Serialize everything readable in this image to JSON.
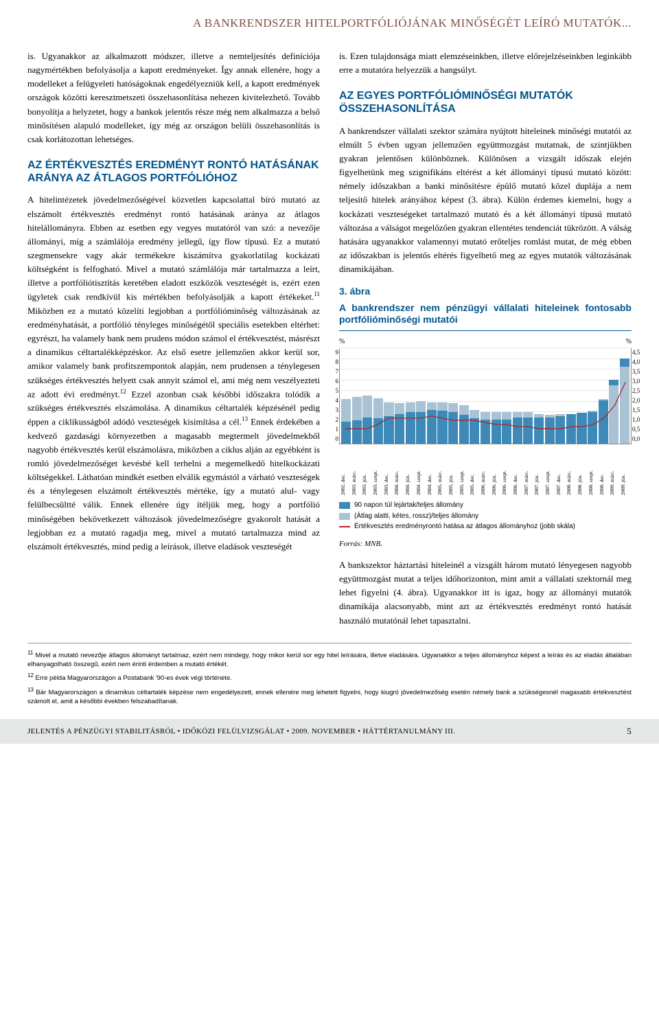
{
  "header": {
    "title": "A BANKRENDSZER HITELPORTFÓLIÓJÁNAK MINŐSÉGÉT LEÍRÓ MUTATÓK..."
  },
  "left": {
    "para1": "is. Ugyanakkor az alkalmazott módszer, illetve a nemteljesítés definíciója nagymértékben befolyásolja a kapott eredményeket. Így annak ellenére, hogy a modelleket a felügyeleti hatóságoknak engedélyezniük kell, a kapott eredmények országok közötti keresztmetszeti összehasonlítása nehezen kivitelezhető. Tovább bonyolítja a helyzetet, hogy a bankok jelentős része még nem alkalmazza a belső minősítésen alapuló modelleket, így még az országon belüli összehasonlítás is csak korlátozottan lehetséges.",
    "heading1": "AZ ÉRTÉKVESZTÉS EREDMÉNYT RONTÓ HATÁSÁNAK ARÁNYA AZ ÁTLAGOS PORTFÓLIÓHOZ",
    "para2": "A hitelintézetek jövedelmezőségével közvetlen kapcsolattal bíró mutató az elszámolt értékvesztés eredményt rontó hatásának aránya az átlagos hitelállományra. Ebben az esetben egy vegyes mutatóról van szó: a nevezője állományi, míg a számlálója eredmény jellegű, így flow típusú. Ez a mutató szegmensekre vagy akár termékekre kiszámítva gyakorlatilag kockázati költségként is felfogható. Mivel a mutató számlálója már tartalmazza a leírt, illetve a portfóliótisztítás keretében eladott eszközök veszteségét is, ezért ezen ügyletek csak rendkívül kis mértékben befolyásolják a kapott értékeket.",
    "fn11": "11",
    "para2b": " Miközben ez a mutató közelíti legjobban a portfólióminőség változásának az eredményhatását, a portfólió tényleges minőségétől speciális esetekben eltérhet: egyrészt, ha valamely bank nem prudens módon számol el értékvesztést, másrészt a dinamikus céltartalékképzéskor. Az első esetre jellemzően akkor kerül sor, amikor valamely bank profitszempontok alapján, nem prudensen a ténylegesen szükséges értékvesztés helyett csak annyit számol el, ami még nem veszélyezteti az adott évi eredményt.",
    "fn12": "12",
    "para2c": " Ezzel azonban csak későbbi időszakra tolódik a szükséges értékvesztés elszámolása. A dinamikus céltartalék képzésénél pedig éppen a ciklikusságból adódó veszteségek kisimítása a cél.",
    "fn13": "13",
    "para2d": " Ennek érdekében a kedvező gazdasági környezetben a magasabb megtermelt jövedelmekből nagyobb értékvesztés kerül elszámolásra, miközben a ciklus alján az egyébként is romló jövedelmezőséget kevésbé kell terhelni a megemelkedő hitelkockázati költségekkel. Láthatóan mindkét esetben elválik egymástól a várható veszteségek és a ténylegesen elszámolt értékvesztés mértéke, így a mutató alul- vagy felülbecsültté válik. Ennek ellenére úgy ítéljük meg, hogy a portfólió minőségében bekövetkezett változások jövedelmezőségre gyakorolt hatását a legjobban ez a mutató ragadja meg, mivel a mutató tartalmazza mind az elszámolt értékvesztés, mind pedig a leírások, illetve eladások veszteségét"
  },
  "right": {
    "para1": "is. Ezen tulajdonsága miatt elemzéseinkben, illetve előrejelzéseinkben leginkább erre a mutatóra helyezzük a hangsúlyt.",
    "heading1": "AZ EGYES PORTFÓLIÓMINŐSÉGI MUTATÓK ÖSSZEHASONLÍTÁSA",
    "para2": "A bankrendszer vállalati szektor számára nyújtott hiteleinek minőségi mutatói az elmúlt 5 évben ugyan jellemzően együttmozgást mutatnak, de szintjükben gyakran jelentősen különböznek. Különösen a vizsgált időszak elején figyelhetünk meg szignifikáns eltérést a két állományi típusú mutató között: némely időszakban a banki minősítésre épülő mutató közel duplája a nem teljesítő hitelek arányához képest (3. ábra). Külön érdemes kiemelni, hogy a kockázati veszteségeket tartalmazó mutató és a két állományi típusú mutató változása a válságot megelőzően gyakran ellentétes tendenciát tükrözött. A válság hatására ugyanakkor valamennyi mutató erőteljes romlást mutat, de még ebben az időszakban is jelentős eltérés figyelhető meg az egyes mutatók változásának dinamikájában.",
    "para3": "A bankszektor háztartási hiteleinél a vizsgált három mutató lényegesen nagyobb együttmozgást mutat a teljes időhorizonton, mint amit a vállalati szektornál meg lehet figyelni (4. ábra). Ugyanakkor itt is igaz, hogy az állományi mutatók dinamikája alacsonyabb, mint azt az értékvesztés eredményt rontó hatását használó mutatónál lehet tapasztalni."
  },
  "figure": {
    "label": "3. ábra",
    "title": "A bankrendszer nem pénzügyi vállalati hiteleinek fontosabb portfólióminőségi mutatói",
    "source": "Forrás: MNB.",
    "y_left_unit": "%",
    "y_right_unit": "%",
    "ylim_left": [
      0,
      9
    ],
    "ylim_right": [
      0,
      4.5
    ],
    "yticks_left": [
      0,
      1,
      2,
      3,
      4,
      5,
      6,
      7,
      8,
      9
    ],
    "yticks_right": [
      "0,0",
      "0,5",
      "1,0",
      "1,5",
      "2,0",
      "2,5",
      "3,0",
      "3,5",
      "4,0",
      "4,5"
    ],
    "colors": {
      "bar_90napon": "#3d89b8",
      "bar_atlag": "#a9c2d4",
      "line": "#b02024",
      "grid": "#e8e8e8",
      "background": "#ffffff"
    },
    "legend": [
      {
        "type": "swatch",
        "color": "#3d89b8",
        "label": "90 napon túl lejártak/teljes állomány"
      },
      {
        "type": "swatch",
        "color": "#a9c2d4",
        "label": "(Átlag alatti, kétes, rossz)/teljes állomány"
      },
      {
        "type": "line",
        "color": "#b02024",
        "label": "Értékvesztés eredményrontó hatása az átlagos állományhoz (jobb skála)"
      }
    ],
    "x_labels": [
      "2002. dec.",
      "2003. márc.",
      "2003. jún.",
      "2003. szept.",
      "2003. dec.",
      "2004. márc.",
      "2004. jún.",
      "2004. szept.",
      "2004. dec.",
      "2005. márc.",
      "2005. jún.",
      "2005. szept.",
      "2005. dec.",
      "2006. márc.",
      "2006. jún.",
      "2006. szept.",
      "2006. dec.",
      "2007. márc.",
      "2007. jún.",
      "2007. szept.",
      "2007. dec.",
      "2008. márc.",
      "2008. jún.",
      "2008. szept.",
      "2008. dec.",
      "2009. márc.",
      "2009. jún."
    ],
    "series_90napon": [
      2.1,
      2.2,
      2.5,
      2.4,
      2.6,
      2.8,
      3.0,
      3.0,
      3.2,
      3.1,
      3.0,
      2.7,
      2.4,
      2.3,
      2.3,
      2.3,
      2.5,
      2.5,
      2.5,
      2.5,
      2.6,
      2.8,
      2.9,
      3.0,
      4.1,
      6.0,
      8.0
    ],
    "series_atlag": [
      4.2,
      4.4,
      4.5,
      4.3,
      3.9,
      3.8,
      3.9,
      4.0,
      3.9,
      3.9,
      3.8,
      3.6,
      3.2,
      3.0,
      3.0,
      3.0,
      3.0,
      3.0,
      2.8,
      2.7,
      2.8,
      2.8,
      2.9,
      3.1,
      4.2,
      5.5,
      7.2
    ],
    "series_line": [
      0.7,
      0.7,
      0.7,
      0.9,
      1.2,
      1.2,
      1.2,
      1.2,
      1.3,
      1.2,
      1.1,
      1.1,
      1.1,
      1.0,
      0.9,
      0.9,
      0.8,
      0.8,
      0.7,
      0.7,
      0.7,
      0.8,
      0.8,
      0.9,
      1.2,
      1.8,
      2.9
    ]
  },
  "footnotes": {
    "n11": "Mivel a mutató nevezője átlagos állományt tartalmaz, ezért nem mindegy, hogy mikor kerül sor egy hitel leírására, illetve eladására. Ugyanakkor a teljes állományhoz képest a leírás és az eladás általában elhanyagolható összegű, ezért nem érinti érdemben a mutató értékét.",
    "n12": "Erre példa Magyarországon a Postabank '90-es évek végi története.",
    "n13": "Bár Magyarországon a dinamikus céltartalék képzése nem engedélyezett, ennek ellenére meg lehetett figyelni, hogy kiugró jövedelmezőség esetén némely bank a szükségesnél magasabb értékvesztést számolt el, amit a későbbi években felszabadítanak."
  },
  "footer": {
    "text": "JELENTÉS A PÉNZÜGYI STABILITÁSRÓL • IDŐKÖZI FELÜLVIZSGÁLAT • 2009. NOVEMBER • HÁTTÉRTANULMÁNY III.",
    "page": "5"
  }
}
